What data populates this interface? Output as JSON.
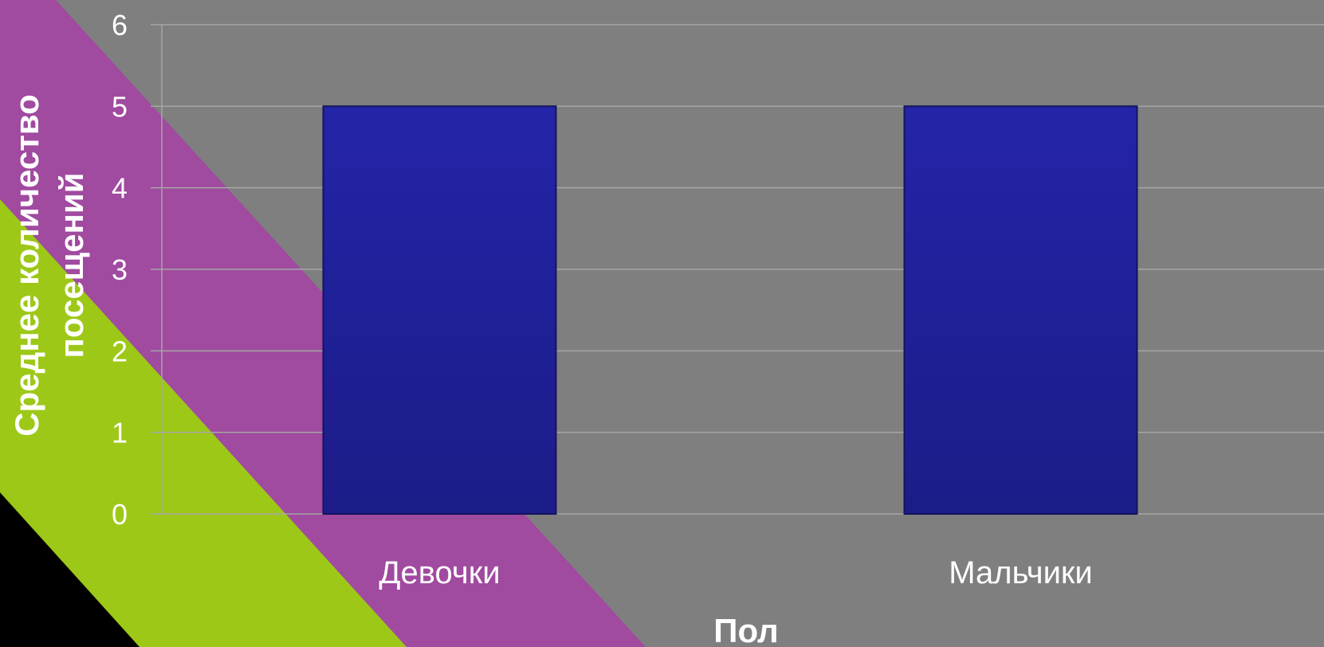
{
  "theme": {
    "background": "#7f7f7f",
    "stripe_purple": "#a04aa0",
    "stripe_green": "#9dc818",
    "stripe_black": "#000000",
    "bar_color": "#2424a8",
    "bar_edge": "#14145e",
    "gridline_color": "#a6a6a6",
    "text_color": "#ffffff"
  },
  "chart_data": {
    "type": "bar",
    "categories": [
      "Девочки",
      "Мальчики"
    ],
    "values": [
      5,
      5
    ],
    "xlabel": "Пол",
    "ylabel_lines": [
      "Среднее количество",
      "посещений"
    ],
    "ylim": [
      0,
      6
    ],
    "yticks": [
      "0",
      "1",
      "2",
      "3",
      "4",
      "5",
      "6"
    ],
    "grid": true,
    "legend": "none"
  }
}
